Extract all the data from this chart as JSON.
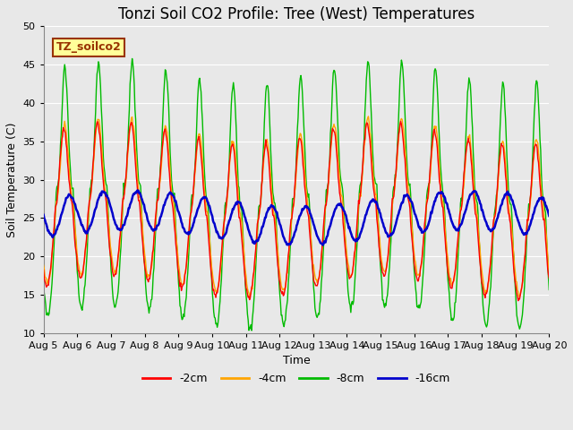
{
  "title": "Tonzi Soil CO2 Profile: Tree (West) Temperatures",
  "xlabel": "Time",
  "ylabel": "Soil Temperature (C)",
  "ylim": [
    10,
    50
  ],
  "xlim_days": [
    5,
    20
  ],
  "x_ticks": [
    5,
    6,
    7,
    8,
    9,
    10,
    11,
    12,
    13,
    14,
    15,
    16,
    17,
    18,
    19,
    20
  ],
  "x_tick_labels": [
    "Aug 5",
    "Aug 6",
    "Aug 7",
    "Aug 8",
    "Aug 9",
    "Aug 10",
    "Aug 11",
    "Aug 12",
    "Aug 13",
    "Aug 14",
    "Aug 15",
    "Aug 16",
    "Aug 17",
    "Aug 18",
    "Aug 19",
    "Aug 20"
  ],
  "y_ticks": [
    10,
    15,
    20,
    25,
    30,
    35,
    40,
    45,
    50
  ],
  "colors": {
    "2cm": "#ff0000",
    "4cm": "#ffa500",
    "8cm": "#00bb00",
    "16cm": "#0000cc"
  },
  "legend_box_label": "TZ_soilco2",
  "legend_box_bg": "#ffff99",
  "legend_box_edge": "#993300",
  "plot_bg": "#e8e8e8",
  "fig_bg": "#e8e8e8",
  "grid_color": "#ffffff",
  "title_fontsize": 12,
  "axis_label_fontsize": 9,
  "tick_fontsize": 8
}
